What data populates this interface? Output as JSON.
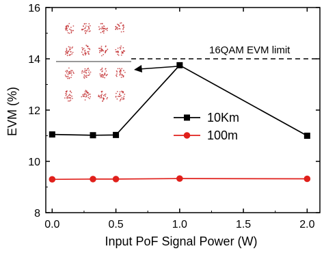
{
  "chart_data": {
    "type": "line",
    "xlabel": "Input PoF Signal Power (W)",
    "ylabel": "EVM (%)",
    "xlim": [
      -0.05,
      2.1
    ],
    "ylim": [
      8,
      16
    ],
    "xticks": [
      0.0,
      0.5,
      1.0,
      1.5,
      2.0
    ],
    "xtick_labels": [
      "0.0",
      "0.5",
      "1.0",
      "1.5",
      "2.0"
    ],
    "yticks": [
      8,
      10,
      12,
      14,
      16
    ],
    "ytick_labels": [
      "8",
      "10",
      "12",
      "14",
      "16"
    ],
    "grid": false,
    "legend": {
      "placement": "center-right"
    },
    "series": [
      {
        "name": "10Km",
        "color": "#000000",
        "marker": "square",
        "x": [
          0.0,
          0.32,
          0.5,
          1.0,
          2.0
        ],
        "y": [
          11.05,
          11.02,
          11.03,
          13.75,
          11.0
        ]
      },
      {
        "name": "100m",
        "color": "#e0201b",
        "marker": "circle",
        "x": [
          0.0,
          0.32,
          0.5,
          1.0,
          2.0
        ],
        "y": [
          9.3,
          9.31,
          9.31,
          9.33,
          9.32
        ]
      }
    ],
    "reference_lines": [
      {
        "label": "16QAM EVM limit",
        "y": 14,
        "style": "dashed",
        "color": "#000000"
      }
    ],
    "annotations": [
      {
        "text": "16QAM EVM limit"
      }
    ],
    "inset": {
      "type": "constellation",
      "label": "16QAM constellation diagram",
      "grid": [
        4,
        4
      ],
      "color": "#c0282a"
    }
  }
}
